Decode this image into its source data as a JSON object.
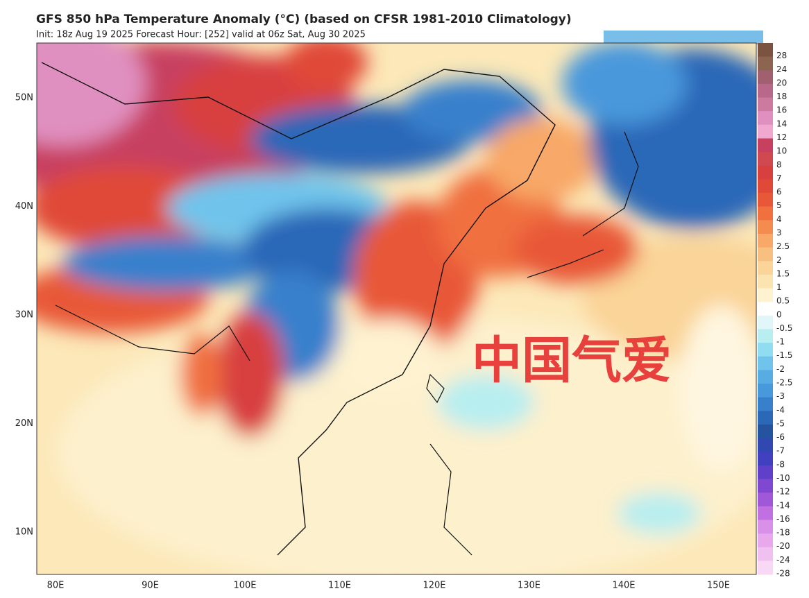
{
  "header": {
    "title": "GFS 850 hPa Temperature Anomaly (°C) (based on CFSR 1981-2010 Climatology)",
    "subtitle": "Init: 18z Aug 19 2025   Forecast Hour: [252]   valid at 06z Sat, Aug 30 2025"
  },
  "map": {
    "lat_labels": [
      "50N",
      "40N",
      "30N",
      "20N",
      "10N"
    ],
    "lon_labels": [
      "80E",
      "90E",
      "100E",
      "110E",
      "120E",
      "130E",
      "140E",
      "150E"
    ],
    "watermark": "中国气爱"
  },
  "colorbar": {
    "levels": [
      "28",
      "24",
      "20",
      "18",
      "16",
      "14",
      "12",
      "10",
      "8",
      "7",
      "6",
      "5",
      "4",
      "3",
      "2.5",
      "2",
      "1.5",
      "1",
      "0.5",
      "0",
      "-0.5",
      "-1",
      "-1.5",
      "-2",
      "-2.5",
      "-3",
      "-4",
      "-5",
      "-6",
      "-7",
      "-8",
      "-10",
      "-12",
      "-14",
      "-16",
      "-18",
      "-20",
      "-24",
      "-28"
    ],
    "colors": [
      "#7a5440",
      "#8c6450",
      "#a06070",
      "#b86888",
      "#cc7aa0",
      "#e090c0",
      "#f0a8d0",
      "#c84060",
      "#d04850",
      "#d84040",
      "#e04838",
      "#e85838",
      "#f07040",
      "#f48c50",
      "#f8a868",
      "#f8c080",
      "#fad498",
      "#fce4b0",
      "#fef2d0",
      "#ffffff",
      "#e0f6f8",
      "#b8eef0",
      "#90dcf0",
      "#70c4ec",
      "#58acE4",
      "#4898dc",
      "#3880cc",
      "#2c68b8",
      "#2454a0",
      "#3048b0",
      "#4040c0",
      "#6040c8",
      "#8048d0",
      "#a058d8",
      "#c070e0",
      "#d890e8",
      "#e8a8ec",
      "#f0c0f0",
      "#f8d8f4"
    ]
  }
}
